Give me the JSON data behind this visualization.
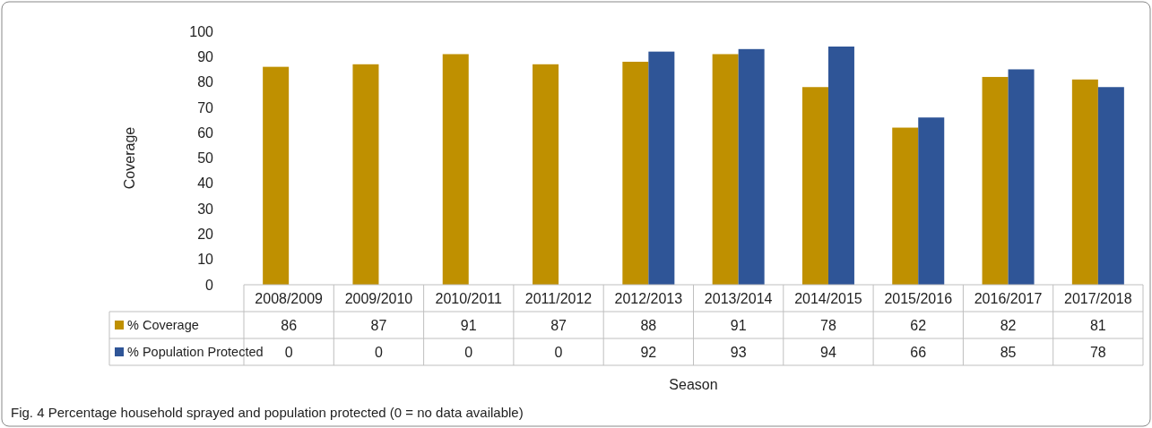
{
  "chart_data": {
    "type": "bar",
    "ylabel": "Coverage",
    "xlabel": "Season",
    "categories": [
      "2008/2009",
      "2009/2010",
      "2010/2011",
      "2011/2012",
      "2012/2013",
      "2013/2014",
      "2014/2015",
      "2015/2016",
      "2016/2017",
      "2017/2018"
    ],
    "series": [
      {
        "name": "% Coverage",
        "color": "#bf9000",
        "values": [
          86,
          87,
          91,
          87,
          88,
          91,
          78,
          62,
          82,
          81
        ]
      },
      {
        "name": "% Population Protected",
        "color": "#2f5597",
        "values": [
          0,
          0,
          0,
          0,
          92,
          93,
          94,
          66,
          85,
          78
        ]
      }
    ],
    "ylim": [
      0,
      100
    ],
    "yticks": [
      0,
      10,
      20,
      30,
      40,
      50,
      60,
      70,
      80,
      90,
      100
    ],
    "grid": false,
    "data_labels": true,
    "legend": "bottom left",
    "annotations": [
      "Fig. 4 Percentage household sprayed and population protected (0 = no data available)"
    ]
  }
}
